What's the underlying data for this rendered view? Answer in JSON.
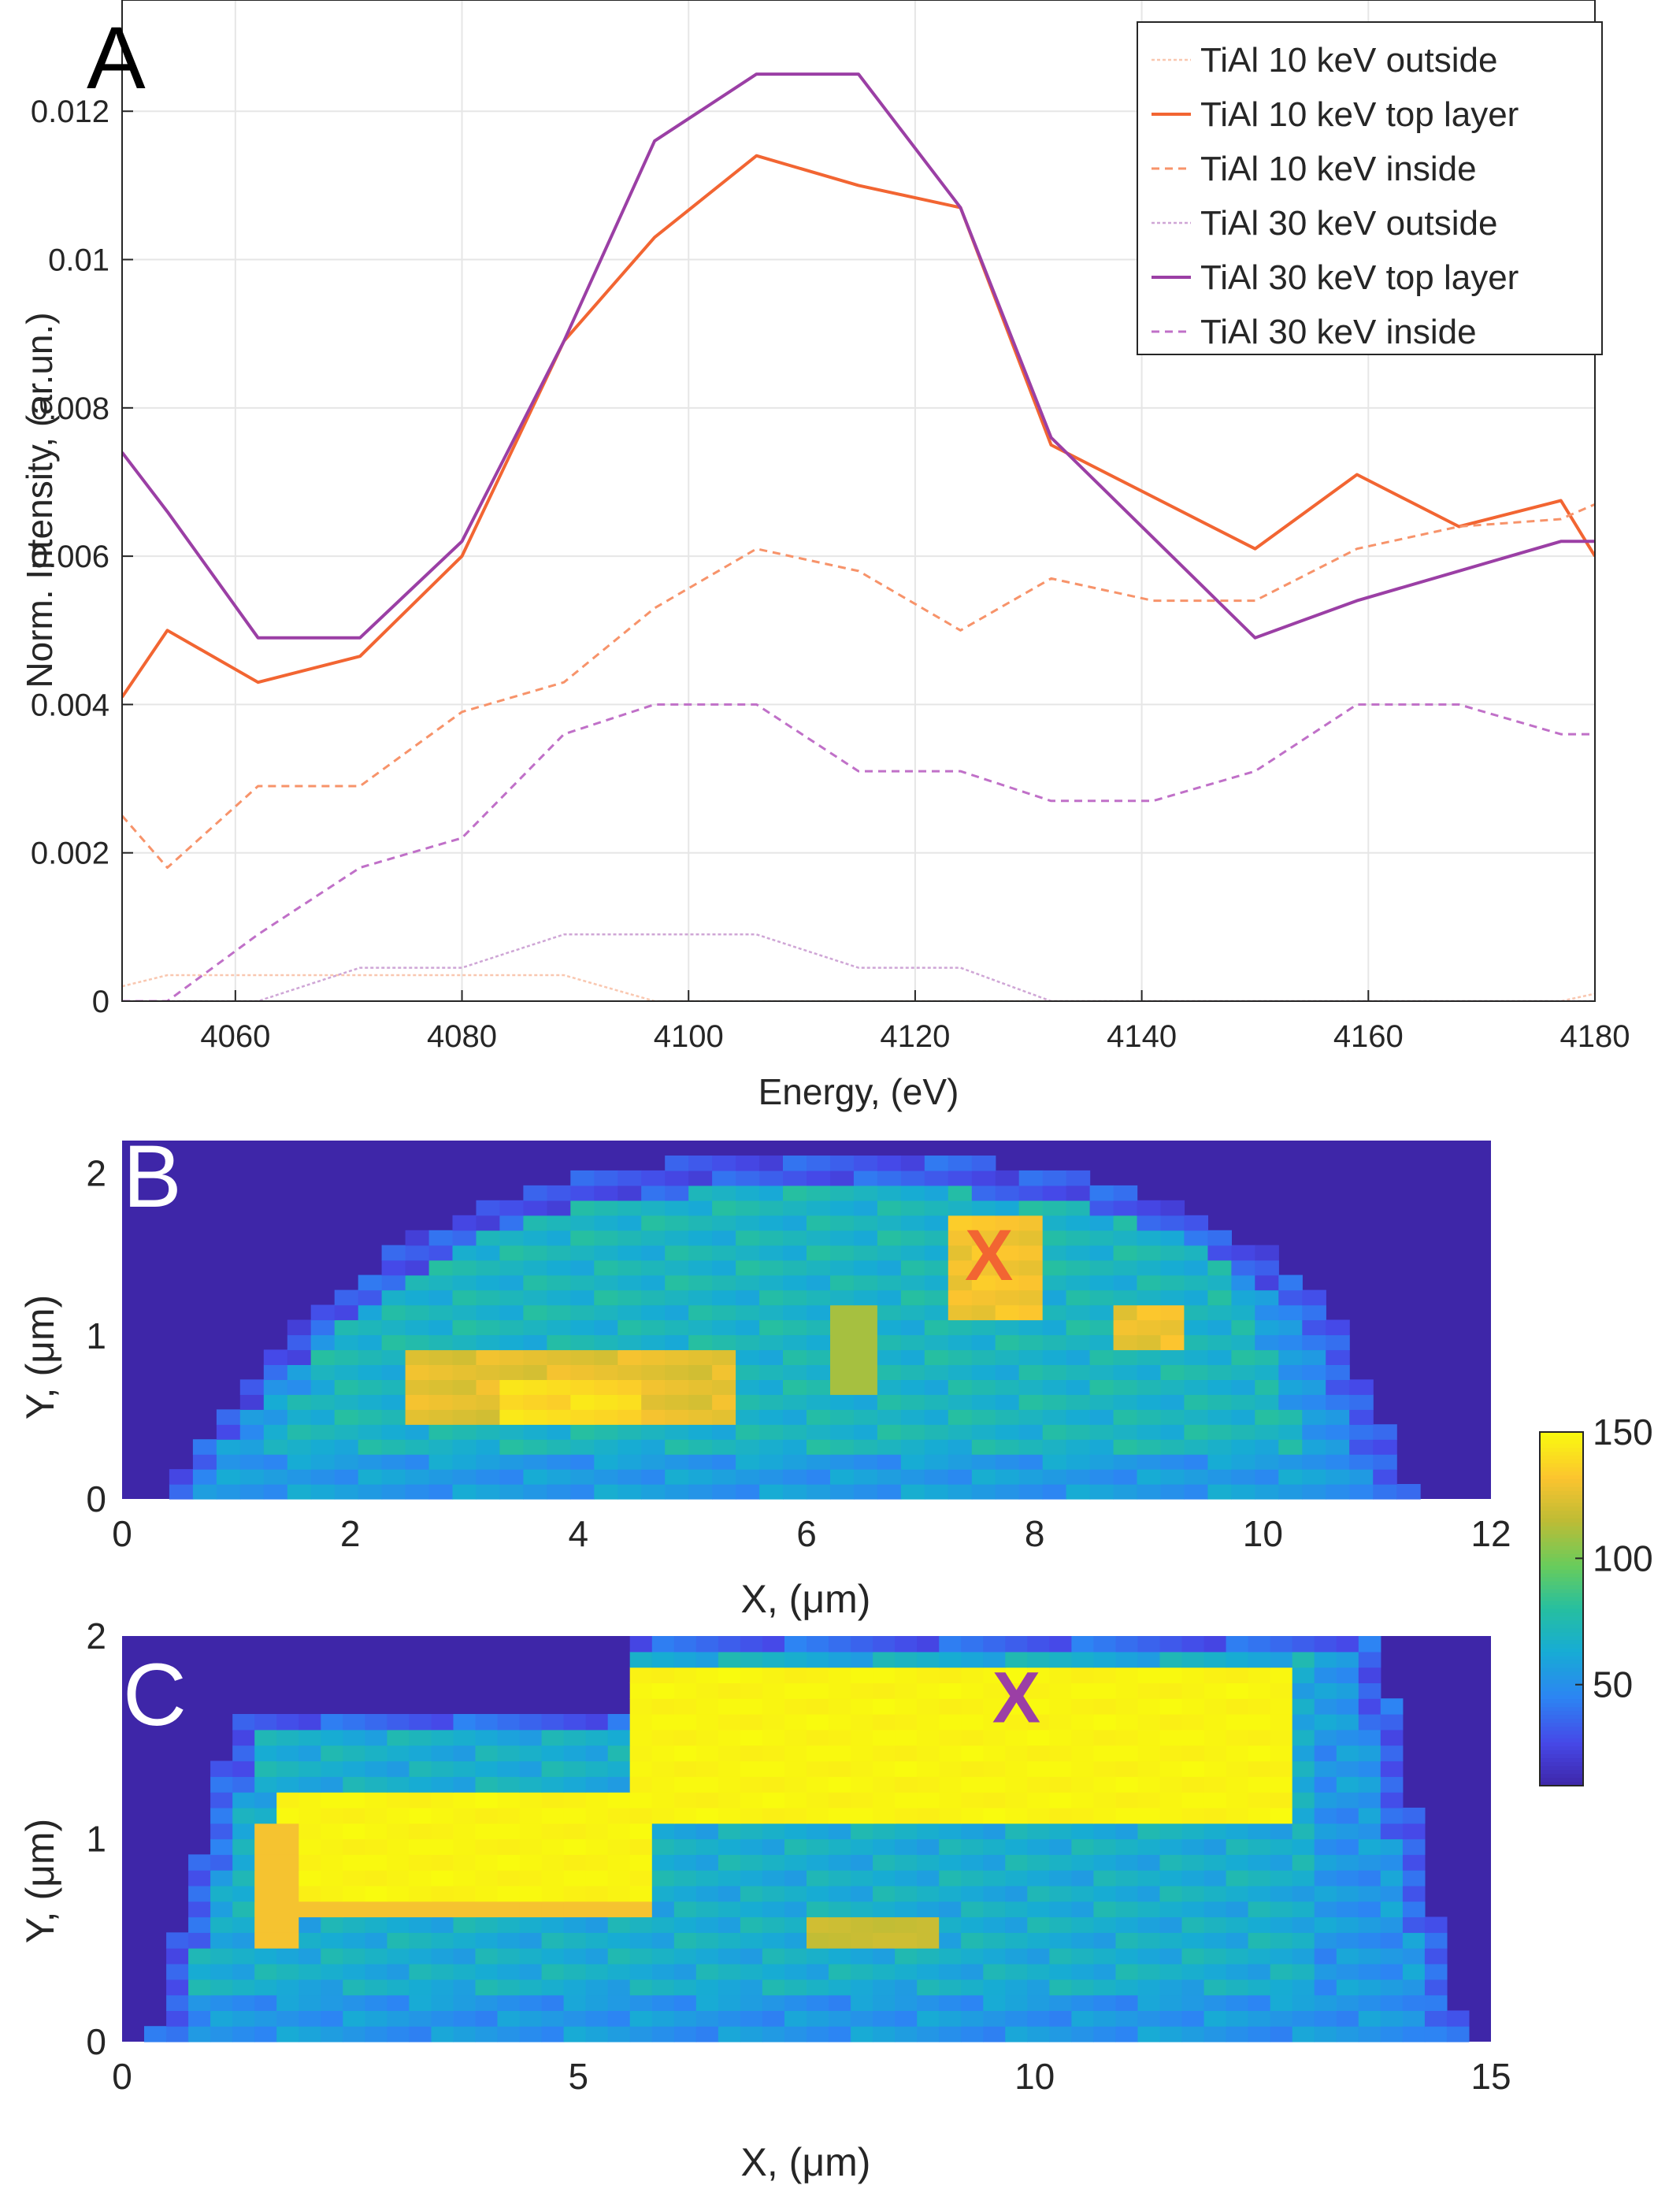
{
  "chart_data": [
    {
      "panel": "A",
      "type": "line",
      "xlabel": "Energy, (eV)",
      "ylabel": "Norm. Intensity, (ar.un.)",
      "xlim": [
        4050,
        4180
      ],
      "ylim": [
        0,
        0.0135
      ],
      "xticks": [
        4060,
        4080,
        4100,
        4120,
        4140,
        4160,
        4180
      ],
      "xtick_labels": [
        "4060",
        "4080",
        "4100",
        "4120",
        "4140",
        "4160",
        "4180"
      ],
      "yticks": [
        0,
        0.002,
        0.004,
        0.006,
        0.008,
        0.01,
        0.012
      ],
      "ytick_labels": [
        "0",
        "0.002",
        "0.004",
        "0.006",
        "0.008",
        "0.01",
        "0.012"
      ],
      "grid": true,
      "legend_position": "top-right",
      "series": [
        {
          "name": "TiAl 10 keV outside",
          "color": "#f9c7b0",
          "dash": "dot-thin",
          "x": [
            4050,
            4054,
            4062,
            4071,
            4080,
            4089,
            4097,
            4106,
            4115,
            4124,
            4132,
            4150,
            4159,
            4168,
            4177,
            4180
          ],
          "y": [
            0.0002,
            0.00035,
            0.00035,
            0.00035,
            0.00035,
            0.00035,
            0,
            0,
            0,
            0,
            0,
            0,
            0,
            0,
            0,
            0.0001
          ]
        },
        {
          "name": "TiAl 10 keV top layer",
          "color": "#f26532",
          "dash": "solid",
          "x": [
            4050,
            4054,
            4062,
            4071,
            4080,
            4089,
            4097,
            4106,
            4115,
            4124,
            4132,
            4150,
            4159,
            4168,
            4177,
            4180
          ],
          "y": [
            0.0041,
            0.005,
            0.0043,
            0.00465,
            0.006,
            0.0089,
            0.0103,
            0.0114,
            0.011,
            0.0107,
            0.0075,
            0.0061,
            0.0071,
            0.0064,
            0.00675,
            0.006
          ]
        },
        {
          "name": "TiAl 10 keV inside",
          "color": "#f7936a",
          "dash": "dashed",
          "x": [
            4050,
            4054,
            4062,
            4071,
            4080,
            4089,
            4097,
            4106,
            4115,
            4124,
            4132,
            4141,
            4150,
            4159,
            4168,
            4177,
            4180
          ],
          "y": [
            0.0025,
            0.0018,
            0.0029,
            0.0029,
            0.0039,
            0.0043,
            0.0053,
            0.0061,
            0.0058,
            0.005,
            0.0057,
            0.0054,
            0.0054,
            0.0061,
            0.0064,
            0.0065,
            0.0067
          ]
        },
        {
          "name": "TiAl 30 keV outside",
          "color": "#cfa6d6",
          "dash": "dot-thin",
          "x": [
            4050,
            4062,
            4071,
            4080,
            4089,
            4097,
            4106,
            4115,
            4124,
            4132,
            4150,
            4168,
            4180
          ],
          "y": [
            0,
            0,
            0.00045,
            0.00045,
            0.0009,
            0.0009,
            0.0009,
            0.00045,
            0.00045,
            0,
            0,
            0,
            0
          ]
        },
        {
          "name": "TiAl 30 keV top layer",
          "color": "#9b3fa5",
          "dash": "solid",
          "x": [
            4050,
            4054,
            4062,
            4071,
            4080,
            4089,
            4097,
            4106,
            4115,
            4124,
            4132,
            4150,
            4159,
            4168,
            4177,
            4180
          ],
          "y": [
            0.0074,
            0.0066,
            0.0049,
            0.0049,
            0.0062,
            0.0089,
            0.0116,
            0.0125,
            0.0125,
            0.0107,
            0.0076,
            0.0049,
            0.0054,
            0.0058,
            0.0062,
            0.0062
          ]
        },
        {
          "name": "TiAl 30 keV inside",
          "color": "#c070c8",
          "dash": "dashed",
          "x": [
            4050,
            4054,
            4062,
            4071,
            4080,
            4089,
            4097,
            4106,
            4115,
            4124,
            4132,
            4141,
            4150,
            4159,
            4168,
            4177,
            4180
          ],
          "y": [
            0,
            0,
            0.0009,
            0.0018,
            0.0022,
            0.0036,
            0.004,
            0.004,
            0.0031,
            0.0031,
            0.0027,
            0.0027,
            0.0031,
            0.004,
            0.004,
            0.0036,
            0.0036
          ]
        }
      ]
    },
    {
      "panel": "B",
      "type": "heatmap",
      "xlabel": "X, (μm)",
      "ylabel": "Y, (μm)",
      "xlim": [
        0,
        12
      ],
      "ylim": [
        0,
        2.2
      ],
      "xticks": [
        0,
        2,
        4,
        6,
        8,
        10,
        12
      ],
      "xtick_labels": [
        "0",
        "2",
        "4",
        "6",
        "8",
        "10",
        "12"
      ],
      "yticks": [
        0,
        1,
        2
      ],
      "ytick_labels": [
        "0",
        "1",
        "2"
      ],
      "marker": {
        "label": "X",
        "x": 7.6,
        "y": 1.5,
        "color": "#f26532"
      },
      "regions": [
        {
          "desc": "outer body",
          "xmin": 0.6,
          "xmax": 11.0,
          "ymin": 0,
          "ymax": 1.9,
          "value": 70
        },
        {
          "desc": "lower-left hotspot",
          "xmin": 2.4,
          "xmax": 5.3,
          "ymin": 0.5,
          "ymax": 0.9,
          "value": 125
        },
        {
          "desc": "lower-left peak",
          "xmin": 3.4,
          "xmax": 4.6,
          "ymin": 0.5,
          "ymax": 0.75,
          "value": 140
        },
        {
          "desc": "upper-right hotspot",
          "xmin": 7.3,
          "xmax": 8.0,
          "ymin": 1.1,
          "ymax": 1.75,
          "value": 130
        },
        {
          "desc": "right hotspot",
          "xmin": 8.6,
          "xmax": 9.4,
          "ymin": 0.95,
          "ymax": 1.2,
          "value": 128
        }
      ]
    },
    {
      "panel": "C",
      "type": "heatmap",
      "xlabel": "X, (μm)",
      "ylabel": "Y, (μm)",
      "xlim": [
        0,
        15
      ],
      "ylim": [
        0,
        2
      ],
      "xticks": [
        0,
        5,
        10,
        15
      ],
      "xtick_labels": [
        "0",
        "5",
        "10",
        "15"
      ],
      "yticks": [
        0,
        1,
        2
      ],
      "ytick_labels": [
        "0",
        "1",
        "2"
      ],
      "marker": {
        "label": "X",
        "x": 9.8,
        "y": 1.7,
        "color": "#9b3fa5"
      },
      "regions": [
        {
          "desc": "outer body",
          "xmin": 0.6,
          "xmax": 14.3,
          "ymin": 0,
          "ymax": 1.9,
          "value": 65
        },
        {
          "desc": "upper band",
          "xmin": 5.5,
          "xmax": 12.8,
          "ymin": 1.1,
          "ymax": 1.85,
          "value": 150
        },
        {
          "desc": "left band",
          "xmin": 1.8,
          "xmax": 5.8,
          "ymin": 0.65,
          "ymax": 1.25,
          "value": 150
        },
        {
          "desc": "small hotspot",
          "xmin": 7.6,
          "xmax": 9.0,
          "ymin": 0.45,
          "ymax": 0.65,
          "value": 120
        }
      ]
    }
  ],
  "panel_labels": {
    "a": "A",
    "b": "B",
    "c": "C"
  },
  "colorbar": {
    "ticks": [
      50,
      100,
      150
    ],
    "tick_labels": [
      "50",
      "100",
      "150"
    ],
    "min": 10,
    "max": 150,
    "colormap": "parula"
  }
}
